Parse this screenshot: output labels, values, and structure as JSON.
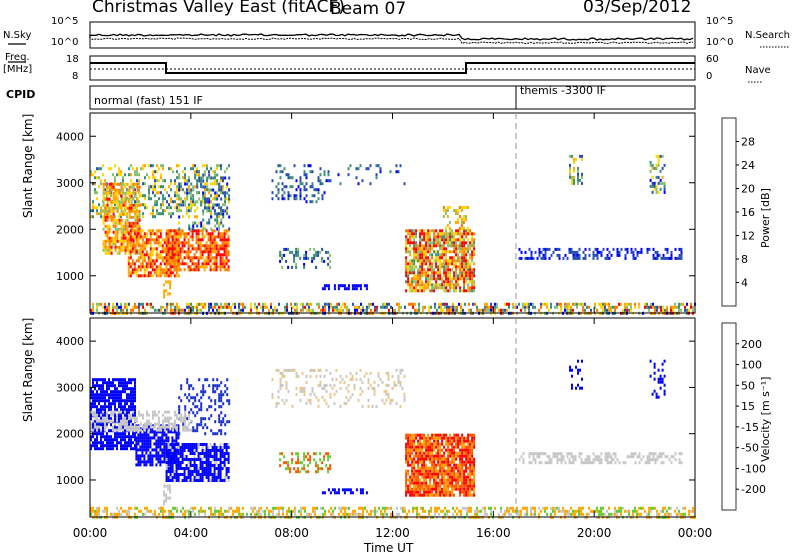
{
  "header": {
    "title": "Christmas Valley East (fitACF)",
    "beam": "Beam 07",
    "date": "03/Sep/2012"
  },
  "top_panels": {
    "nsky_label": "N.Sky",
    "nsearch_label": "N.Search",
    "freq_label_1": "Freq.",
    "freq_label_2": "[MHz]",
    "nave_label": "Nave",
    "cpid_label": "CPID",
    "left_ticks_sky": [
      "10^5",
      "10^0"
    ],
    "right_ticks_sky": [
      "10^5",
      "10^0"
    ],
    "left_ticks_freq": [
      "18",
      "8"
    ],
    "right_ticks_freq": [
      "60",
      "0"
    ],
    "cpid_mode_1": "normal (fast) 151 IF",
    "cpid_mode_2": "themis -3300 IF"
  },
  "chart_data": [
    {
      "type": "heatmap",
      "name": "Power panel",
      "ylabel": "Slant Range [km]",
      "xlabel": "",
      "x_ticks": [
        "00:00",
        "04:00",
        "08:00",
        "12:00",
        "16:00",
        "20:00",
        "00:00"
      ],
      "y_ticks": [
        "1000",
        "2000",
        "3000",
        "4000"
      ],
      "ylim": [
        200,
        4500
      ],
      "colorbar": {
        "label": "Power [dB]",
        "ticks": [
          "28",
          "24",
          "20",
          "16",
          "12",
          "8",
          "4"
        ],
        "colors": [
          "#ff0000",
          "#ff7700",
          "#ffaa00",
          "#ffd700",
          "#88c070",
          "#3c8f7a",
          "#2a4fb0",
          "#0000ff"
        ]
      },
      "cpid_change_time": "16:55"
    },
    {
      "type": "heatmap",
      "name": "Velocity panel",
      "ylabel": "Slant Range [km]",
      "xlabel": "Time UT",
      "x_ticks": [
        "00:00",
        "04:00",
        "08:00",
        "12:00",
        "16:00",
        "20:00",
        "00:00"
      ],
      "y_ticks": [
        "1000",
        "2000",
        "3000",
        "4000"
      ],
      "ylim": [
        200,
        4500
      ],
      "colorbar": {
        "label": "Velocity [m s⁻¹]",
        "ticks": [
          "200",
          "100",
          "50",
          "15",
          "-15",
          "-50",
          "-100",
          "-200"
        ],
        "colors": [
          "#0000ff",
          "#2233cc",
          "#2d7a3a",
          "#66cc33",
          "#cccccc",
          "#ffcc00",
          "#ff9900",
          "#ff5500",
          "#ff0000"
        ]
      }
    }
  ]
}
